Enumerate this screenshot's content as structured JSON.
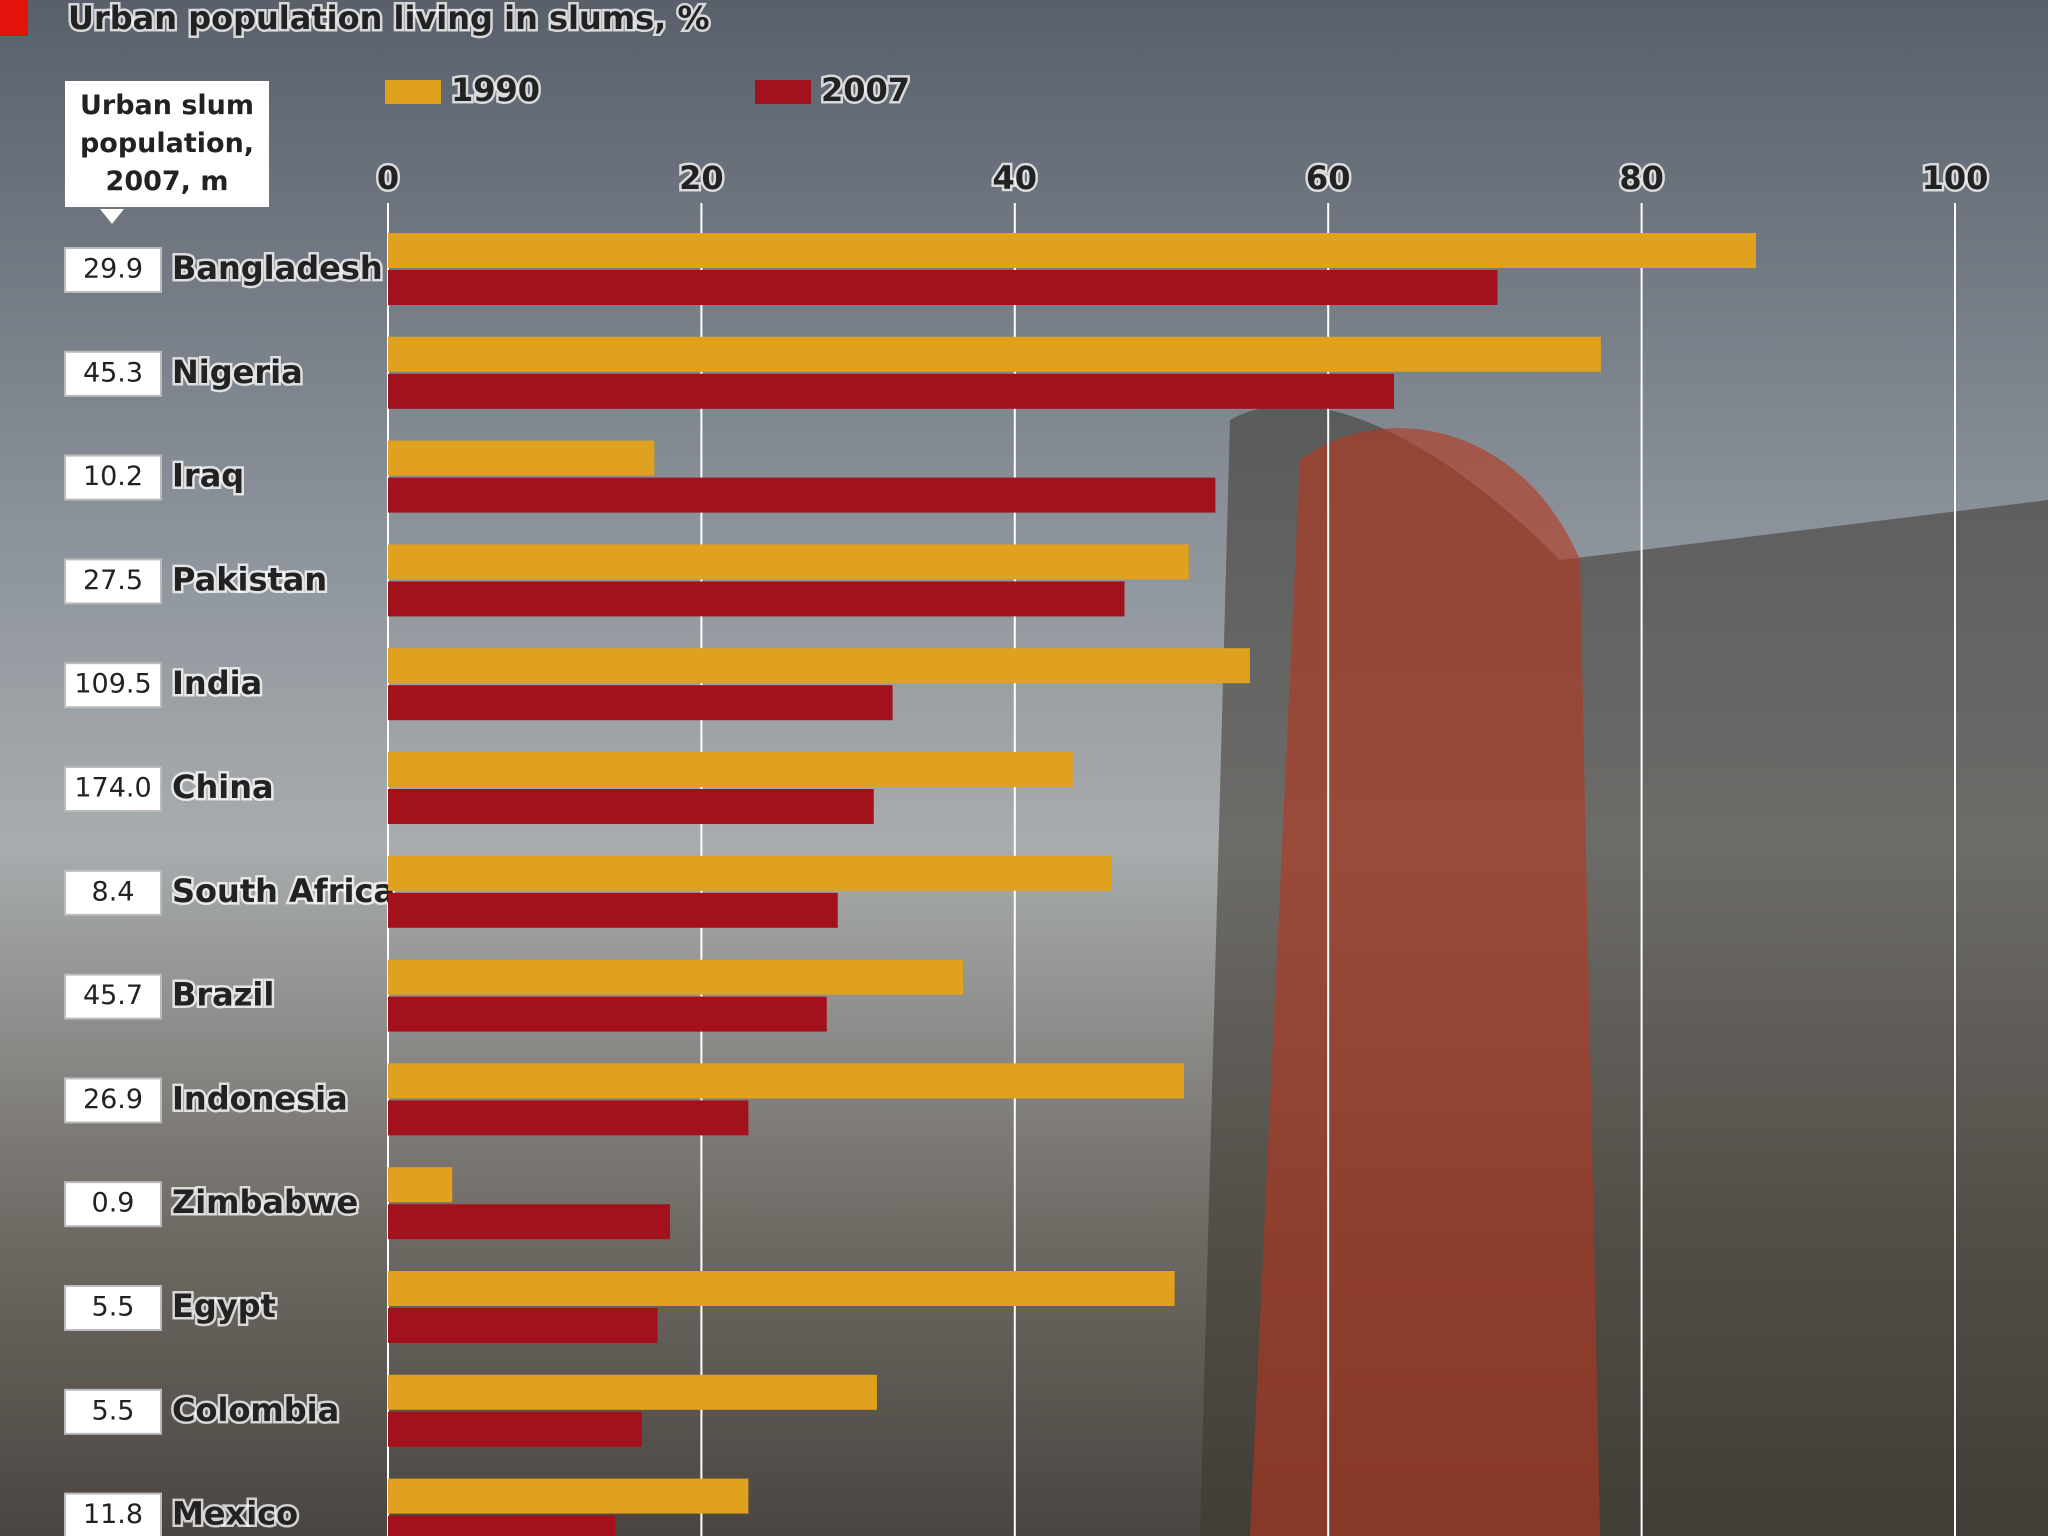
{
  "chart_data": {
    "type": "bar",
    "orientation": "horizontal",
    "title": "Urban population living in slums, %",
    "annotation_title": "Urban slum population, 2007, m",
    "annotation_values": [
      "29.9",
      "45.3",
      "10.2",
      "27.5",
      "109.5",
      "174.0",
      "8.4",
      "45.7",
      "26.9",
      "0.9",
      "5.5",
      "5.5",
      "11.8"
    ],
    "categories": [
      "Bangladesh",
      "Nigeria",
      "Iraq",
      "Pakistan",
      "India",
      "China",
      "South Africa",
      "Brazil",
      "Indonesia",
      "Zimbabwe",
      "Egypt",
      "Colombia",
      "Mexico"
    ],
    "series": [
      {
        "name": "1990",
        "color": "#e0a21e",
        "values": [
          87.3,
          77.4,
          17.0,
          51.1,
          55.0,
          43.7,
          46.2,
          36.7,
          50.8,
          4.1,
          50.2,
          31.2,
          23.0
        ]
      },
      {
        "name": "2007",
        "color": "#a3121c",
        "values": [
          70.8,
          64.2,
          52.8,
          47.0,
          32.2,
          31.0,
          28.7,
          28.0,
          23.0,
          18.0,
          17.2,
          16.2,
          14.5
        ]
      }
    ],
    "xlim": [
      0,
      100
    ],
    "xticks": [
      0,
      20,
      40,
      60,
      80,
      100
    ],
    "grid": true,
    "legend": "top"
  }
}
